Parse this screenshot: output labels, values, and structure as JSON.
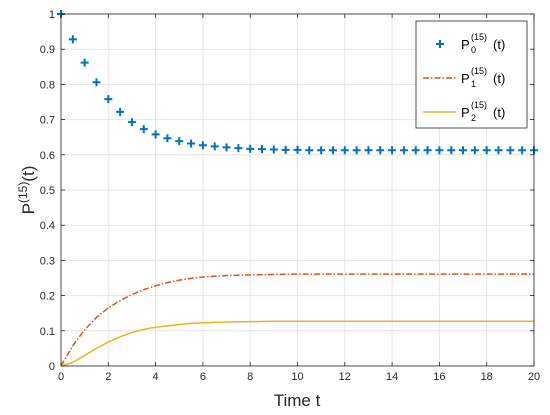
{
  "chart_data": {
    "type": "line",
    "xlabel": "Time t",
    "ylabel": {
      "base": "P",
      "sup": "(15)",
      "suffix": "(t)"
    },
    "xlim": [
      0,
      20
    ],
    "ylim": [
      0,
      1
    ],
    "xticks": [
      "0",
      "2",
      "4",
      "6",
      "8",
      "10",
      "12",
      "14",
      "16",
      "18",
      "20"
    ],
    "yticks": [
      "0",
      "0.1",
      "0.2",
      "0.3",
      "0.4",
      "0.5",
      "0.6",
      "0.7",
      "0.8",
      "0.9",
      "1"
    ],
    "grid": true,
    "legend_position": "top-right",
    "series": [
      {
        "name": {
          "base": "P",
          "sub": "0",
          "sup": "(15)",
          "suffix": "(t)"
        },
        "style": "markers-plus",
        "color": "#0072BD",
        "x": [
          0,
          0.5,
          1,
          1.5,
          2,
          2.5,
          3,
          3.5,
          4,
          4.5,
          5,
          5.5,
          6,
          6.5,
          7,
          7.5,
          8,
          8.5,
          9,
          9.5,
          10,
          10.5,
          11,
          11.5,
          12,
          12.5,
          13,
          13.5,
          14,
          14.5,
          15,
          15.5,
          16,
          16.5,
          17,
          17.5,
          18,
          18.5,
          19,
          19.5,
          20
        ],
        "y": [
          1.0,
          0.928,
          0.862,
          0.806,
          0.758,
          0.722,
          0.693,
          0.673,
          0.658,
          0.647,
          0.639,
          0.632,
          0.627,
          0.624,
          0.621,
          0.619,
          0.617,
          0.616,
          0.615,
          0.614,
          0.614,
          0.613,
          0.613,
          0.613,
          0.613,
          0.613,
          0.613,
          0.613,
          0.613,
          0.613,
          0.613,
          0.613,
          0.613,
          0.613,
          0.613,
          0.613,
          0.613,
          0.613,
          0.613,
          0.613,
          0.613
        ]
      },
      {
        "name": {
          "base": "P",
          "sub": "1",
          "sup": "(15)",
          "suffix": "(t)"
        },
        "style": "dash-dot",
        "color": "#D95319",
        "x": [
          0,
          0.5,
          1,
          1.5,
          2,
          2.5,
          3,
          3.5,
          4,
          4.5,
          5,
          5.5,
          6,
          7,
          8,
          9,
          10,
          12,
          14,
          16,
          18,
          20
        ],
        "y": [
          0,
          0.058,
          0.103,
          0.138,
          0.165,
          0.186,
          0.203,
          0.217,
          0.228,
          0.237,
          0.244,
          0.249,
          0.253,
          0.257,
          0.259,
          0.26,
          0.261,
          0.261,
          0.261,
          0.261,
          0.261,
          0.261
        ]
      },
      {
        "name": {
          "base": "P",
          "sub": "2",
          "sup": "(15)",
          "suffix": "(t)"
        },
        "style": "solid",
        "color": "#EDB120",
        "x": [
          0,
          0.5,
          1,
          1.5,
          2,
          2.5,
          3,
          3.5,
          4,
          4.5,
          5,
          5.5,
          6,
          7,
          8,
          9,
          10,
          12,
          14,
          16,
          18,
          20
        ],
        "y": [
          0,
          0.01,
          0.03,
          0.05,
          0.068,
          0.083,
          0.095,
          0.104,
          0.11,
          0.114,
          0.118,
          0.121,
          0.123,
          0.125,
          0.126,
          0.127,
          0.127,
          0.127,
          0.127,
          0.127,
          0.127,
          0.127
        ]
      }
    ]
  }
}
